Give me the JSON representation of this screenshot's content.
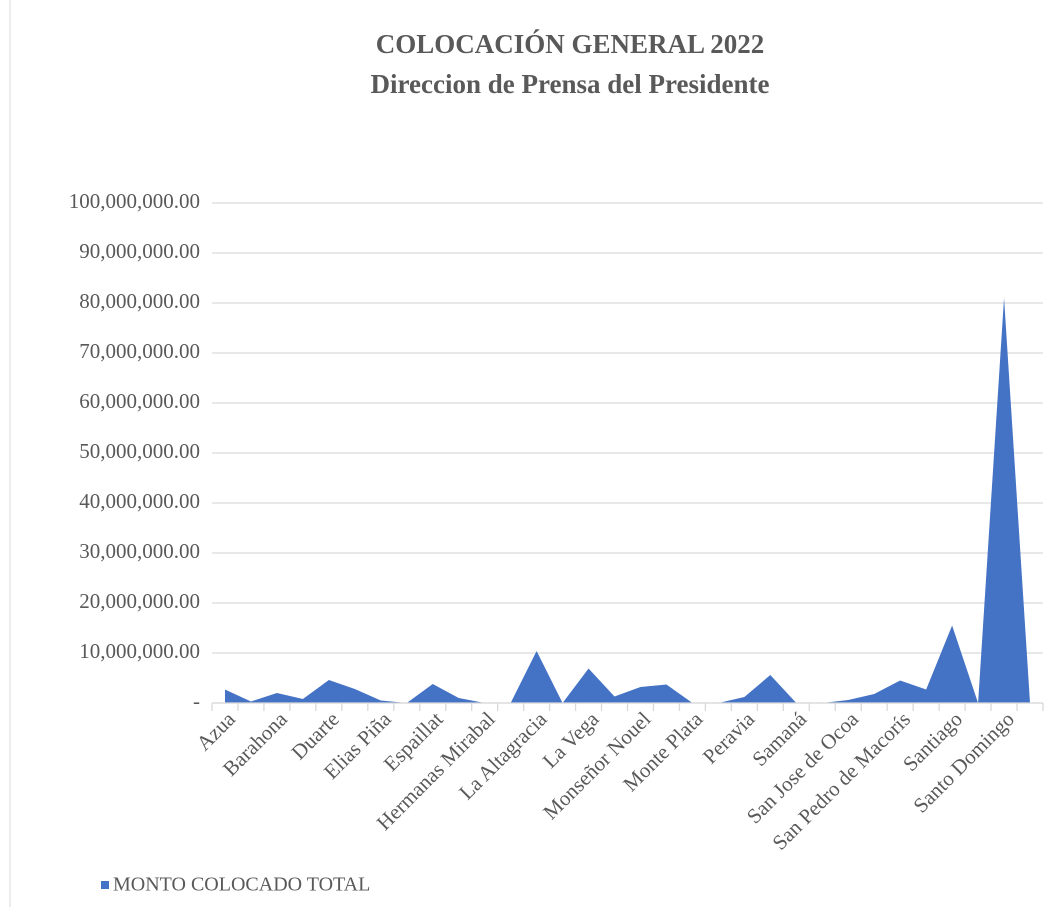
{
  "chart_data": {
    "type": "area",
    "title": "COLOCACIÓN GENERAL  2022",
    "subtitle": "Direccion de Prensa del Presidente",
    "categories": [
      "Azua",
      null,
      "Barahona",
      null,
      "Duarte",
      null,
      "Elias Piña",
      null,
      "Espaillat",
      null,
      "Hermanas Mirabal",
      null,
      "La Altagracia",
      null,
      "La Vega",
      null,
      "Monseñor Nouel",
      null,
      "Monte Plata",
      null,
      "Peravia",
      null,
      "Samaná",
      null,
      "San Jose de Ocoa",
      null,
      "San Pedro de Macorís",
      null,
      "Santiago",
      null,
      "Santo Domingo",
      null
    ],
    "series": [
      {
        "name": "MONTO COLOCADO TOTAL",
        "color": "#4472c4",
        "values": [
          2700000,
          300000,
          2000000,
          800000,
          4600000,
          2800000,
          500000,
          0,
          3800000,
          1000000,
          0,
          0,
          10400000,
          0,
          6900000,
          1300000,
          3200000,
          3700000,
          0,
          0,
          1200000,
          5600000,
          0,
          0,
          600000,
          1800000,
          4500000,
          2700000,
          15500000,
          0,
          81000000,
          0
        ]
      }
    ],
    "ylim": [
      0,
      100000000
    ],
    "yticks": [
      {
        "value": 0,
        "label": "-"
      },
      {
        "value": 10000000,
        "label": "10,000,000.00"
      },
      {
        "value": 20000000,
        "label": "20,000,000.00"
      },
      {
        "value": 30000000,
        "label": "30,000,000.00"
      },
      {
        "value": 40000000,
        "label": "40,000,000.00"
      },
      {
        "value": 50000000,
        "label": "50,000,000.00"
      },
      {
        "value": 60000000,
        "label": "60,000,000.00"
      },
      {
        "value": 70000000,
        "label": "70,000,000.00"
      },
      {
        "value": 80000000,
        "label": "80,000,000.00"
      },
      {
        "value": 90000000,
        "label": "90,000,000.00"
      },
      {
        "value": 100000000,
        "label": "100,000,000.00"
      }
    ],
    "grid": true,
    "legend": "bottom-left"
  }
}
